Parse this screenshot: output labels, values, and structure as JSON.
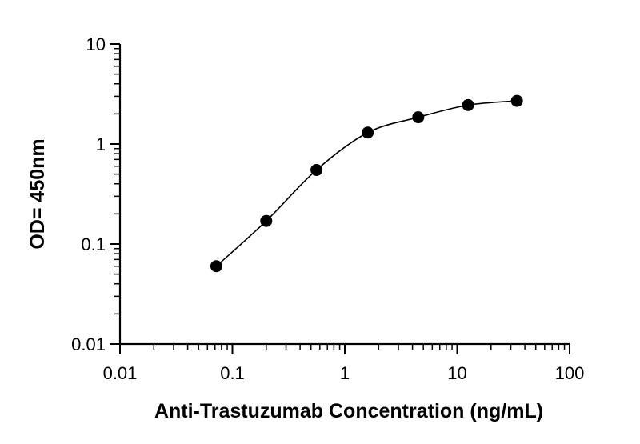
{
  "chart_data": {
    "type": "scatter",
    "title": "",
    "xlabel": "Anti-Trastuzumab Concentration (ng/mL)",
    "ylabel": "OD= 450nm",
    "xscale": "log",
    "yscale": "log",
    "xlim": [
      0.01,
      100
    ],
    "ylim": [
      0.01,
      10
    ],
    "x_ticks": [
      "0.01",
      "0.1",
      "1",
      "10",
      "100"
    ],
    "y_ticks": [
      "0.01",
      "0.1",
      "1",
      "10"
    ],
    "grid": false,
    "legend": "none",
    "fit_curve": "sigmoidal",
    "marker_color": "#000000",
    "series": [
      {
        "x": [
          0.072,
          0.2,
          0.56,
          1.6,
          4.5,
          12.5,
          34
        ],
        "y": [
          0.06,
          0.17,
          0.55,
          1.3,
          1.85,
          2.45,
          2.7
        ]
      }
    ]
  }
}
